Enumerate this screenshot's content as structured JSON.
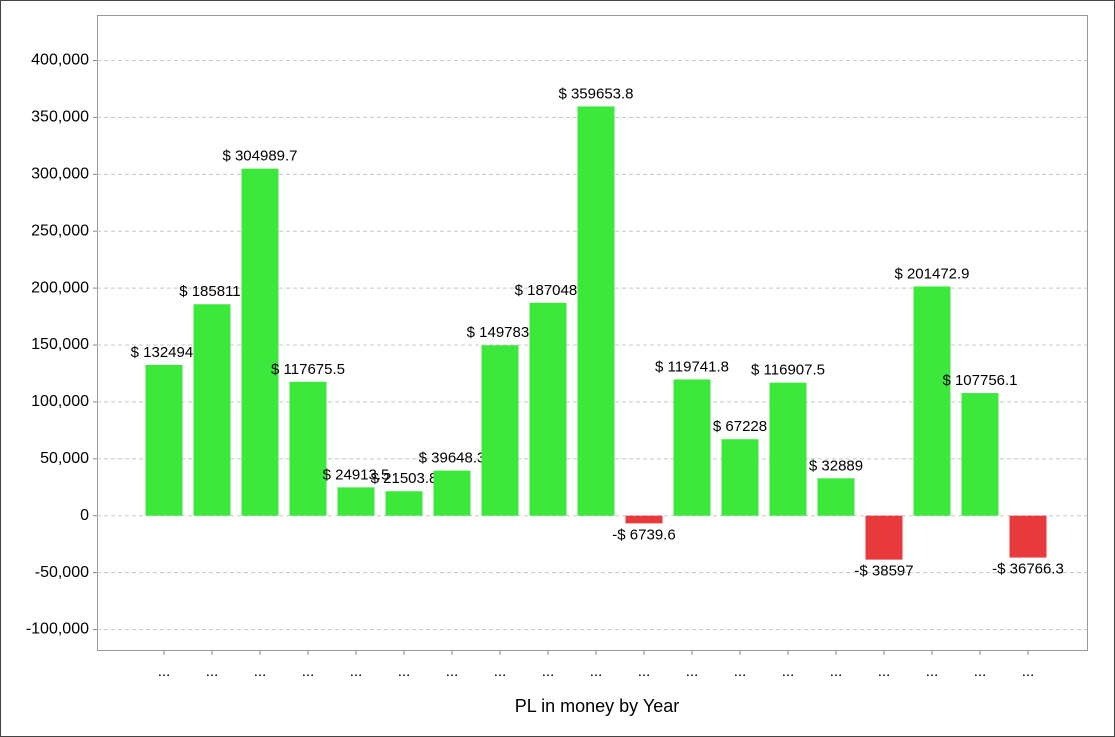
{
  "chart_data": {
    "type": "bar",
    "x_label": "PL in money by Year",
    "categories": [
      "...",
      "...",
      "...",
      "...",
      "...",
      "...",
      "...",
      "...",
      "...",
      "...",
      "...",
      "...",
      "...",
      "...",
      "...",
      "...",
      "...",
      "...",
      "..."
    ],
    "values": [
      132494,
      185811,
      304989.7,
      117675.5,
      24913.5,
      21503.8,
      39648.3,
      149783,
      187048,
      359653.8,
      -6739.6,
      119741.8,
      67228,
      116907.5,
      32889,
      -38597,
      201472.9,
      107756.1,
      -36766.3
    ],
    "value_labels": [
      "$ 132494.",
      "$ 185811.",
      "$ 304989.7",
      "$ 117675.5",
      "$ 24913.5",
      "$ 21503.8",
      "$ 39648.3",
      "$ 149783.",
      "$ 187048.",
      "$ 359653.8",
      "-$ 6739.6",
      "$ 119741.8",
      "$ 67228",
      "$ 116907.5",
      "$ 32889",
      "-$ 38597",
      "$ 201472.9",
      "$ 107756.1",
      "-$ 36766.3"
    ],
    "positive_color": "#3de83d",
    "negative_color": "#e8393d",
    "ylim": [
      -118000,
      440000
    ],
    "yticks": [
      {
        "value": -100000,
        "label": "-100,000"
      },
      {
        "value": -50000,
        "label": "-50,000"
      },
      0,
      {
        "value": 50000,
        "label": "50,000"
      },
      {
        "value": 100000,
        "label": "100,000"
      },
      {
        "value": 150000,
        "label": "150,000"
      },
      {
        "value": 200000,
        "label": "200,000"
      },
      {
        "value": 250000,
        "label": "250,000"
      },
      {
        "value": 300000,
        "label": "300,000"
      },
      {
        "value": 350000,
        "label": "350,000"
      },
      {
        "value": 400000,
        "label": "400,000"
      }
    ],
    "grid": true
  }
}
